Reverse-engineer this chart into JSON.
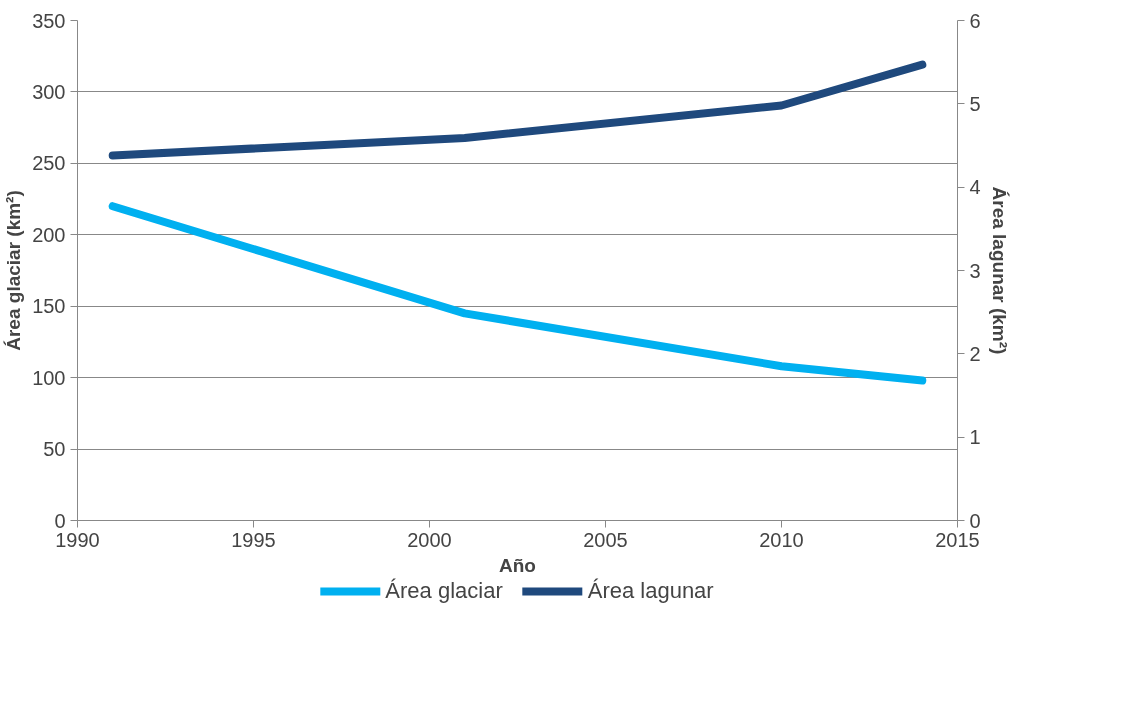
{
  "chart_data": {
    "type": "line",
    "xlabel": "Año",
    "ylabel": "Área glaciar (km²)",
    "y2label": "Área lagunar (km²)",
    "x": [
      1991,
      2001,
      2010,
      2014
    ],
    "series": [
      {
        "name": "Área glaciar",
        "color": "#00b0f0",
        "values": [
          220,
          145,
          108,
          98
        ]
      },
      {
        "name": "Área lagunar",
        "color": "#1f497d",
        "values": [
          4.38,
          4.59,
          4.98,
          5.47
        ],
        "axis": "y2"
      }
    ],
    "xlim": [
      1990,
      2015
    ],
    "xticks": [
      1990,
      1995,
      2000,
      2005,
      2010,
      2015
    ],
    "ylim": [
      0,
      350
    ],
    "yticks": [
      0,
      50,
      100,
      150,
      200,
      250,
      300,
      350
    ],
    "y2lim": [
      0,
      6
    ],
    "y2ticks": [
      0,
      1,
      2,
      3,
      4,
      5,
      6
    ],
    "grid": "y",
    "legend": "bottom",
    "marker": "none",
    "line_style": "solid"
  }
}
